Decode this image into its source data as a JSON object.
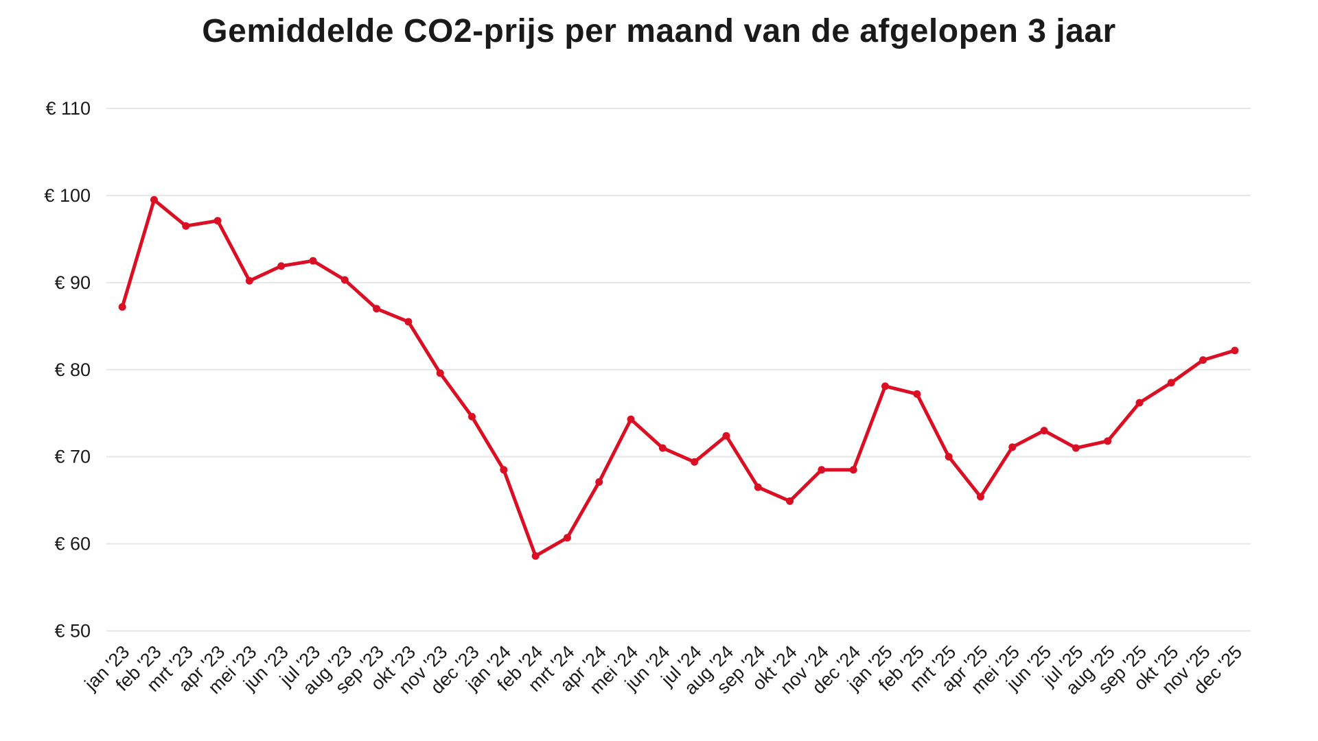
{
  "chart_data": {
    "type": "line",
    "title": "Gemiddelde CO2-prijs per maand van de afgelopen 3 jaar",
    "categories": [
      "jan '23",
      "feb '23",
      "mrt '23",
      "apr '23",
      "mei '23",
      "jun '23",
      "jul '23",
      "aug '23",
      "sep '23",
      "okt '23",
      "nov '23",
      "dec '23",
      "jan '24",
      "feb '24",
      "mrt '24",
      "apr '24",
      "mei '24",
      "jun '24",
      "jul '24",
      "aug '24",
      "sep '24",
      "okt '24",
      "nov '24",
      "dec '24",
      "jan '25",
      "feb '25",
      "mrt '25",
      "apr '25",
      "mei '25",
      "jun '25",
      "jul '25",
      "aug '25",
      "sep '25",
      "okt '25",
      "nov '25",
      "dec '25"
    ],
    "values": [
      87.2,
      99.5,
      96.5,
      97.1,
      90.2,
      91.9,
      92.5,
      90.3,
      87.0,
      85.5,
      79.6,
      74.6,
      68.5,
      58.6,
      60.7,
      67.1,
      74.3,
      71.0,
      69.4,
      72.4,
      66.5,
      64.9,
      68.5,
      68.5,
      78.1,
      77.2,
      70.0,
      65.4,
      71.1,
      73.0,
      71.0,
      71.8,
      76.2,
      78.5,
      81.1,
      82.2
    ],
    "xlabel": "",
    "ylabel": "",
    "ylim": [
      50,
      110
    ],
    "y_ticks": [
      50,
      60,
      70,
      80,
      90,
      100,
      110
    ],
    "y_tick_prefix": "€ ",
    "grid": "horizontal-only",
    "legend": "none",
    "line_color": "#db0f23",
    "grid_color": "#e6e6e6",
    "text_color": "#1a1a1a",
    "background_color": "#ffffff"
  }
}
